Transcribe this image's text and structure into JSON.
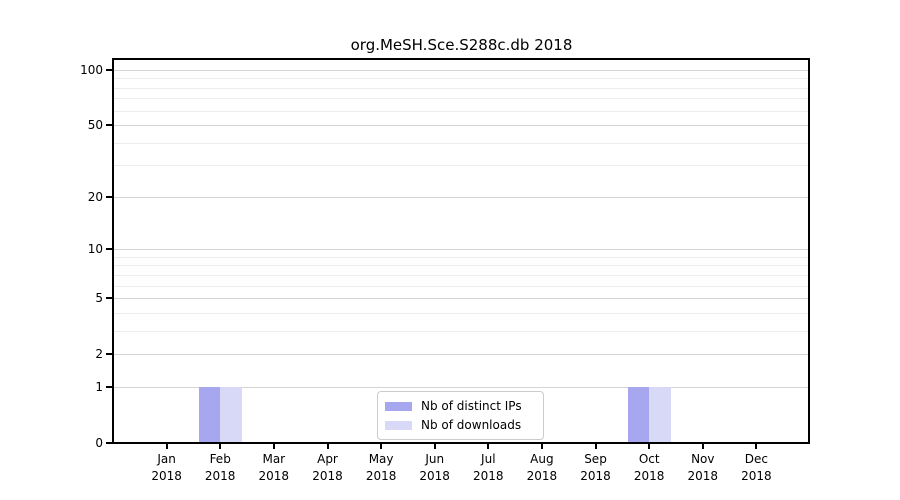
{
  "chart_data": {
    "type": "bar",
    "title": "org.MeSH.Sce.S288c.db 2018",
    "categories": [
      "Jan",
      "Feb",
      "Mar",
      "Apr",
      "May",
      "Jun",
      "Jul",
      "Aug",
      "Sep",
      "Oct",
      "Nov",
      "Dec"
    ],
    "category_sublabel": "2018",
    "series": [
      {
        "name": "Nb of distinct IPs",
        "color": "#a7a7f0",
        "values": [
          0,
          1,
          0,
          0,
          0,
          0,
          0,
          0,
          0,
          1,
          0,
          0
        ]
      },
      {
        "name": "Nb of downloads",
        "color": "#d8d8f7",
        "values": [
          0,
          1,
          0,
          0,
          0,
          0,
          0,
          0,
          0,
          1,
          0,
          0
        ]
      }
    ],
    "yscale": "log1p",
    "ylim": [
      0,
      113
    ],
    "y_major_ticks": [
      0,
      1,
      2,
      5,
      10,
      20,
      50,
      100
    ],
    "y_minor_ticks": [
      3,
      4,
      6,
      7,
      8,
      9,
      30,
      40,
      60,
      70,
      80,
      90
    ],
    "grid": "horizontal",
    "legend_position": "lower center"
  },
  "colors": {
    "major_grid": "#d4d4d4",
    "minor_grid": "#ececec",
    "spine": "#000000",
    "background": "#ffffff"
  }
}
